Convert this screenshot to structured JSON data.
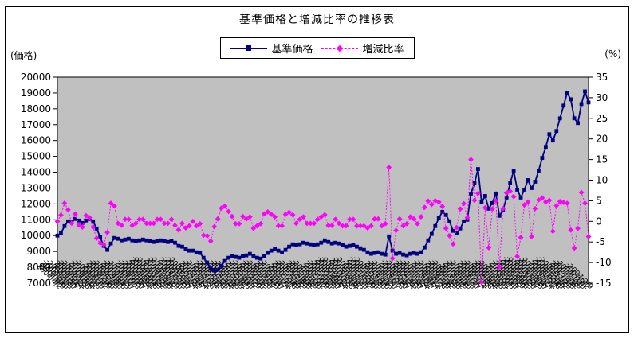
{
  "chart_data": {
    "type": "line",
    "title": "基準価格と増減比率の推移表",
    "legend_position": "top",
    "plot_bg": "#c0c0c0",
    "left_axis": {
      "title": "(価格)",
      "min": 7000,
      "max": 20000,
      "step": 1000
    },
    "right_axis": {
      "title": "(%)",
      "min": -15,
      "max": 35,
      "step": 5
    },
    "x_labels": [
      "2004/4/2",
      "2004/4/9",
      "2004/4/16",
      "2004/4/23",
      "2004/4/30",
      "2004/5/7",
      "2004/5/14",
      "2004/5/21",
      "2004/5/28",
      "2004/6/4",
      "2004/6/11",
      "2004/6/18",
      "2004/6/25",
      "2004/7/2",
      "2004/7/9",
      "2004/7/16",
      "2004/7/23",
      "2004/7/30",
      "2004/8/6",
      "2004/8/13",
      "2004/8/20",
      "2004/8/27",
      "2004/9/3",
      "2004/9/10",
      "2004/9/17",
      "2004/9/24",
      "2004/10/1",
      "2004/10/8",
      "2004/10/15",
      "2004/10/22",
      "2004/10/29",
      "2004/11/5",
      "2004/11/12",
      "2004/11/19",
      "2004/11/26",
      "2004/12/3",
      "2004/12/10",
      "2004/12/17",
      "2004/12/24",
      "2004/12/31",
      "2005/1/7",
      "2005/1/14",
      "2005/1/21",
      "2005/1/28",
      "2005/2/4",
      "2005/2/11",
      "2005/2/18",
      "2005/2/25",
      "2005/3/4",
      "2005/3/11",
      "2005/3/18",
      "2005/3/25",
      "2005/4/1",
      "2005/4/8",
      "2005/4/15",
      "2005/4/22",
      "2005/4/29",
      "2005/5/6",
      "2005/5/13",
      "2005/5/20",
      "2005/5/27",
      "2005/6/3",
      "2005/6/10",
      "2005/6/17",
      "2005/6/24",
      "2005/7/1",
      "2005/7/8",
      "2005/7/15",
      "2005/7/22",
      "2005/7/29",
      "2005/8/5",
      "2005/8/12",
      "2005/8/19",
      "2005/8/26",
      "2005/9/2",
      "2005/9/9",
      "2005/9/16",
      "2005/9/23",
      "2005/9/30",
      "2005/10/7",
      "2005/10/14",
      "2005/10/21",
      "2005/10/28",
      "2005/11/4",
      "2005/11/11",
      "2005/11/18",
      "2005/11/25",
      "2005/12/2",
      "2005/12/9",
      "2005/12/16",
      "2005/12/23",
      "2005/12/30",
      "2006/1/6",
      "2006/1/13",
      "2006/1/20",
      "2006/1/27",
      "2006/2/3",
      "2006/2/10",
      "2006/2/17",
      "2006/2/24",
      "2006/3/3",
      "2006/3/10",
      "2006/3/17",
      "2006/3/24",
      "2006/3/31",
      "2006/4/7",
      "2006/4/14",
      "2006/4/21",
      "2006/4/28",
      "2006/5/5",
      "2006/5/12",
      "2006/5/19",
      "2006/5/26",
      "2006/6/2",
      "2006/6/9",
      "2006/6/16",
      "2006/6/23",
      "2006/6/30",
      "2006/7/7",
      "2006/7/14",
      "2006/7/21",
      "2006/7/28",
      "2006/8/4",
      "2006/8/11",
      "2006/8/18",
      "2006/8/25",
      "2006/9/1",
      "2006/9/8",
      "2006/9/15",
      "2006/9/22",
      "2006/9/29",
      "2006/10/6",
      "2006/10/13",
      "2006/10/20",
      "2006/10/27",
      "2006/11/3",
      "2006/11/10",
      "2006/11/17",
      "2006/11/24",
      "2006/12/1",
      "2006/12/8",
      "2006/12/15",
      "2006/12/22",
      "2006/12/29",
      "2007/1/5",
      "2007/1/12",
      "2007/1/19",
      "2007/1/26",
      "2007/2/2",
      "2007/2/9"
    ],
    "series": [
      {
        "name": "基準価格",
        "axis": "left",
        "color": "#000080",
        "marker": "square",
        "line_style": "solid",
        "values": [
          10000,
          10150,
          10600,
          10900,
          10850,
          11050,
          10950,
          10800,
          10950,
          11050,
          10900,
          10450,
          9900,
          9350,
          9100,
          9500,
          9850,
          9800,
          9700,
          9750,
          9800,
          9700,
          9650,
          9700,
          9750,
          9700,
          9650,
          9600,
          9650,
          9700,
          9650,
          9600,
          9650,
          9550,
          9350,
          9300,
          9150,
          9050,
          9050,
          8950,
          8900,
          8600,
          8300,
          7900,
          7800,
          7850,
          8100,
          8400,
          8600,
          8700,
          8650,
          8600,
          8700,
          8750,
          8850,
          8700,
          8600,
          8550,
          8700,
          8900,
          9050,
          9150,
          9050,
          8950,
          9100,
          9300,
          9450,
          9400,
          9450,
          9550,
          9500,
          9450,
          9400,
          9450,
          9550,
          9700,
          9600,
          9500,
          9550,
          9500,
          9400,
          9300,
          9350,
          9400,
          9300,
          9200,
          9100,
          8950,
          8850,
          8900,
          8950,
          8850,
          8800,
          9950,
          9050,
          8850,
          8900,
          8800,
          8750,
          8850,
          8900,
          8850,
          8950,
          9250,
          9700,
          10100,
          10600,
          11100,
          11500,
          11300,
          10900,
          10300,
          10150,
          10450,
          10900,
          11000,
          12650,
          13300,
          14200,
          12100,
          12500,
          11700,
          12050,
          12650,
          11250,
          11600,
          12400,
          13300,
          14100,
          12900,
          12400,
          12900,
          13500,
          13000,
          13400,
          14100,
          14900,
          15600,
          16400,
          16000,
          16600,
          17400,
          18200,
          19000,
          18600,
          17400,
          17100,
          18300,
          19100,
          18400
        ]
      },
      {
        "name": "増減比率",
        "axis": "right",
        "color": "#ff00ff",
        "marker": "diamond",
        "line_style": "dashed",
        "values": [
          0.0,
          1.5,
          4.4,
          2.8,
          -0.5,
          1.8,
          -0.9,
          -1.4,
          1.4,
          0.9,
          -1.4,
          -4.1,
          -5.3,
          -5.6,
          -2.7,
          4.4,
          3.7,
          -0.5,
          -1.0,
          0.5,
          0.5,
          -1.0,
          -0.5,
          0.5,
          0.5,
          -0.5,
          -0.5,
          -0.5,
          0.5,
          0.5,
          -0.5,
          -0.5,
          0.5,
          -1.0,
          -2.1,
          -0.5,
          -1.6,
          -1.1,
          0.0,
          -1.1,
          -0.6,
          -3.4,
          -3.5,
          -4.8,
          -1.3,
          0.6,
          3.2,
          3.7,
          2.4,
          1.2,
          -0.6,
          -0.6,
          1.2,
          0.6,
          1.1,
          -1.7,
          -1.1,
          -0.6,
          1.8,
          2.3,
          1.7,
          1.1,
          -1.1,
          -1.1,
          1.7,
          2.2,
          1.6,
          -0.5,
          0.5,
          1.1,
          -0.5,
          -0.5,
          -0.5,
          0.5,
          1.1,
          1.6,
          -1.0,
          -1.0,
          0.5,
          -0.5,
          -1.1,
          -1.1,
          0.5,
          0.5,
          -1.1,
          -1.1,
          -1.1,
          -1.6,
          -1.1,
          0.6,
          0.6,
          -1.1,
          -0.6,
          13.1,
          -9.0,
          -2.2,
          0.6,
          -1.1,
          -0.6,
          1.1,
          0.6,
          -0.6,
          1.1,
          3.4,
          4.9,
          4.1,
          5.0,
          4.7,
          3.6,
          -1.7,
          -3.5,
          -5.5,
          -1.5,
          3.0,
          4.3,
          0.9,
          15.0,
          5.1,
          6.8,
          -14.8,
          3.3,
          -6.4,
          3.0,
          5.0,
          -11.1,
          3.1,
          6.9,
          7.3,
          6.0,
          -8.5,
          -3.9,
          4.0,
          4.7,
          -3.7,
          3.1,
          5.2,
          5.7,
          4.7,
          5.1,
          -2.4,
          3.8,
          4.8,
          4.6,
          4.4,
          -2.1,
          -6.5,
          -1.7,
          7.0,
          4.4,
          -3.7
        ]
      }
    ]
  }
}
